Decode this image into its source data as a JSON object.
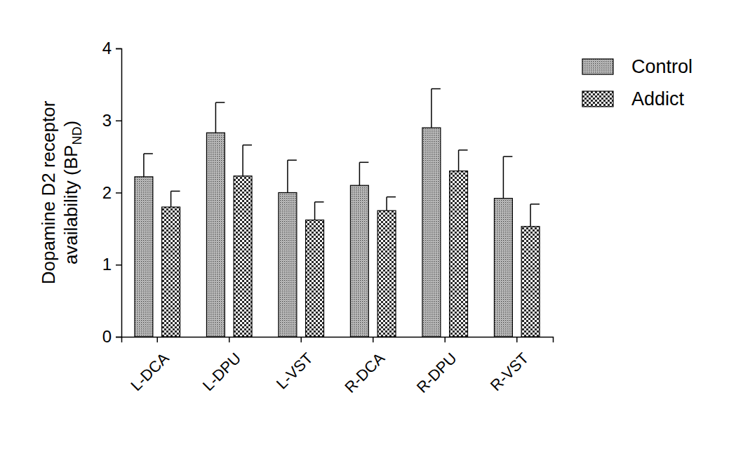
{
  "chart_data": {
    "type": "bar",
    "ylabel": {
      "lines": [
        "Dopamine  D2 receptor",
        "availability (BP"
      ],
      "subscript": "ND",
      "after": ")"
    },
    "categories": [
      "L-DCA",
      "L-DPU",
      "L-VST",
      "R-DCA",
      "R-DPU",
      "R-VST"
    ],
    "series": [
      {
        "name": "Control",
        "color": "#4a4a4a",
        "values": [
          2.22,
          2.83,
          2.0,
          2.1,
          2.9,
          1.92
        ],
        "errors": [
          0.32,
          0.42,
          0.45,
          0.32,
          0.54,
          0.58
        ]
      },
      {
        "name": "Addict",
        "color": "#2a2a2a",
        "values": [
          1.8,
          2.23,
          1.62,
          1.75,
          2.3,
          1.53
        ],
        "errors": [
          0.22,
          0.43,
          0.25,
          0.19,
          0.29,
          0.31
        ]
      }
    ],
    "ylim": [
      0,
      4
    ],
    "yticks": [
      0,
      1,
      2,
      3,
      4
    ],
    "grid": false,
    "legend": "right"
  }
}
